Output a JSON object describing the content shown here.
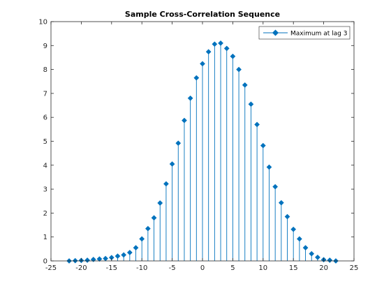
{
  "chart_data": {
    "type": "stem",
    "title": "Sample Cross-Correlation Sequence",
    "xlabel": "",
    "ylabel": "",
    "xlim": [
      -25,
      25
    ],
    "ylim": [
      0,
      10
    ],
    "x_ticks": [
      -25,
      -20,
      -15,
      -10,
      -5,
      0,
      5,
      10,
      15,
      20,
      25
    ],
    "y_ticks": [
      0,
      1,
      2,
      3,
      4,
      5,
      6,
      7,
      8,
      9,
      10
    ],
    "x_tick_labels": [
      "-25",
      "-20",
      "-15",
      "-10",
      "-5",
      "0",
      "5",
      "10",
      "15",
      "20",
      "25"
    ],
    "y_tick_labels": [
      "0",
      "1",
      "2",
      "3",
      "4",
      "5",
      "6",
      "7",
      "8",
      "9",
      "10"
    ],
    "grid": false,
    "legend_position": "top-right",
    "series": [
      {
        "name": "Maximum at lag 3",
        "color": "#0072bd",
        "marker": "filled-diamond",
        "x": [
          -22,
          -21,
          -20,
          -19,
          -18,
          -17,
          -16,
          -15,
          -14,
          -13,
          -12,
          -11,
          -10,
          -9,
          -8,
          -7,
          -6,
          -5,
          -4,
          -3,
          -2,
          -1,
          0,
          1,
          2,
          3,
          4,
          5,
          6,
          7,
          8,
          9,
          10,
          11,
          12,
          13,
          14,
          15,
          16,
          17,
          18,
          19,
          20,
          21,
          22
        ],
        "y": [
          0.0,
          0.01,
          0.02,
          0.03,
          0.06,
          0.08,
          0.1,
          0.14,
          0.2,
          0.25,
          0.35,
          0.55,
          0.92,
          1.35,
          1.8,
          2.42,
          3.22,
          4.05,
          4.92,
          5.87,
          6.8,
          7.65,
          8.24,
          8.74,
          9.06,
          9.1,
          8.88,
          8.55,
          8.0,
          7.35,
          6.55,
          5.7,
          4.82,
          3.92,
          3.1,
          2.43,
          1.85,
          1.32,
          0.92,
          0.55,
          0.3,
          0.15,
          0.05,
          0.03,
          0.0
        ]
      }
    ]
  }
}
